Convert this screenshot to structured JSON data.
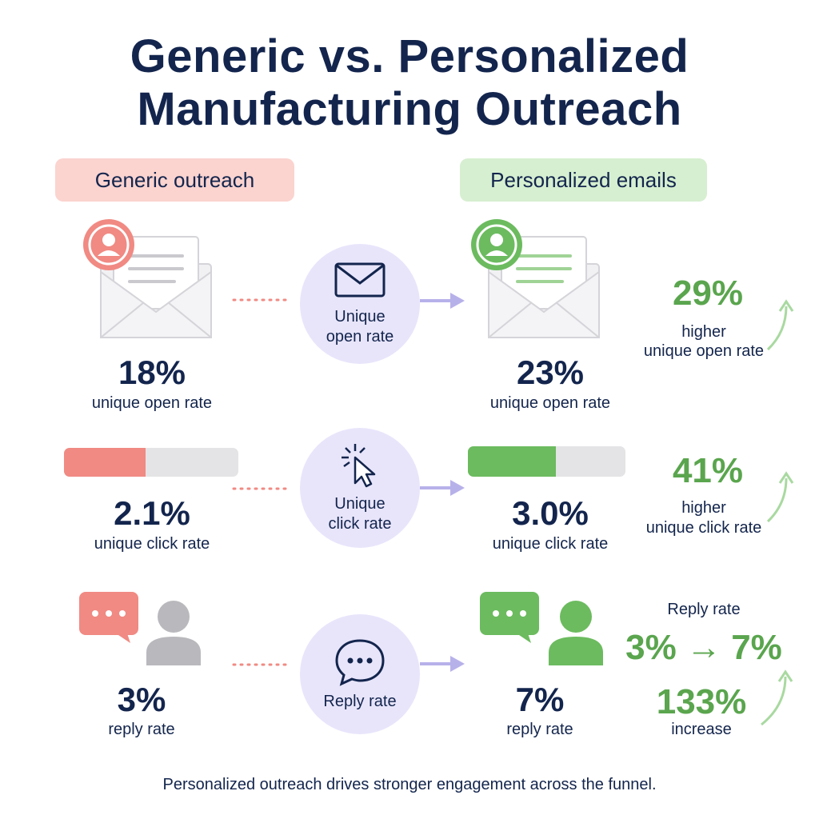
{
  "title_line1": "Generic vs. Personalized",
  "title_line2": "Manufacturing Outreach",
  "columns": {
    "generic_label": "Generic outreach",
    "personalized_label": "Personalized emails"
  },
  "rows": {
    "open": {
      "generic_value": "18%",
      "generic_caption": "unique open rate",
      "metric_line1": "Unique",
      "metric_line2": "open rate",
      "personal_value": "23%",
      "personal_caption": "unique open rate",
      "lift_value": "29%",
      "lift_line1": "higher",
      "lift_line2": "unique open rate"
    },
    "click": {
      "generic_value": "2.1%",
      "generic_caption": "unique click rate",
      "metric_line1": "Unique",
      "metric_line2": "click rate",
      "personal_value": "3.0%",
      "personal_caption": "unique click rate",
      "lift_value": "41%",
      "lift_line1": "higher",
      "lift_line2": "unique click rate",
      "generic_bar_fill": 0.47,
      "personal_bar_fill": 0.56
    },
    "reply": {
      "generic_value": "3%",
      "generic_caption": "reply rate",
      "metric_label": "Reply rate",
      "personal_value": "7%",
      "personal_caption": "reply rate",
      "side_heading": "Reply rate",
      "side_change": "3% → 7%",
      "lift_value": "133%",
      "lift_caption": "increase"
    }
  },
  "footer": "Personalized outreach drives stronger engagement across the funnel.",
  "icons": {
    "generic_open": "envelope-with-user-icon",
    "personal_open": "envelope-with-user-icon",
    "metric_open": "mail-icon",
    "metric_click": "cursor-click-icon",
    "metric_reply": "chat-bubble-icon",
    "generic_reply": "chat-and-person-icon",
    "personal_reply": "chat-and-person-icon",
    "arrow": "right-arrow-icon",
    "lift": "trend-up-arrow-icon"
  },
  "colors": {
    "navy": "#13254d",
    "generic_accent": "#f08a83",
    "personal_accent": "#6cbb5f",
    "lift_green": "#5aa54e",
    "metric_circle": "#e8e5fb",
    "arrow": "#b7b1ea"
  }
}
